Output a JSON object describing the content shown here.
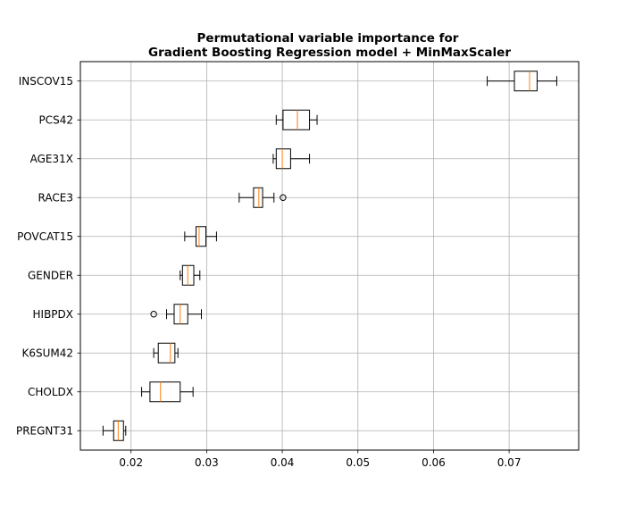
{
  "chart_data": {
    "type": "boxplot",
    "orientation": "horizontal",
    "title_lines": [
      "Permutational variable importance for",
      "Gradient Boosting Regression model + MinMaxScaler"
    ],
    "xlabel": "",
    "ylabel": "",
    "xlim": [
      0.0133,
      0.0792
    ],
    "x_ticks": [
      0.02,
      0.03,
      0.04,
      0.05,
      0.06,
      0.07
    ],
    "x_tick_labels": [
      "0.02",
      "0.03",
      "0.04",
      "0.05",
      "0.06",
      "0.07"
    ],
    "grid": true,
    "box_color": "#000000",
    "median_color": "#ff7f0e",
    "categories": [
      "INSCOV15",
      "PCS42",
      "AGE31X",
      "RACE3",
      "POVCAT15",
      "GENDER",
      "HIBPDX",
      "K6SUM42",
      "CHOLDX",
      "PREGNT31"
    ],
    "boxes": [
      {
        "label": "INSCOV15",
        "whisker_low": 0.0671,
        "q1": 0.0707,
        "median": 0.0727,
        "q3": 0.0737,
        "whisker_high": 0.0763,
        "outliers": []
      },
      {
        "label": "PCS42",
        "whisker_low": 0.0392,
        "q1": 0.0401,
        "median": 0.042,
        "q3": 0.0436,
        "whisker_high": 0.0446,
        "outliers": []
      },
      {
        "label": "AGE31X",
        "whisker_low": 0.0388,
        "q1": 0.0392,
        "median": 0.04,
        "q3": 0.0411,
        "whisker_high": 0.0436,
        "outliers": []
      },
      {
        "label": "RACE3",
        "whisker_low": 0.0343,
        "q1": 0.0362,
        "median": 0.0369,
        "q3": 0.0374,
        "whisker_high": 0.0389,
        "outliers": [
          0.0401
        ]
      },
      {
        "label": "POVCAT15",
        "whisker_low": 0.0271,
        "q1": 0.0286,
        "median": 0.029,
        "q3": 0.0299,
        "whisker_high": 0.0313,
        "outliers": []
      },
      {
        "label": "GENDER",
        "whisker_low": 0.0265,
        "q1": 0.0268,
        "median": 0.0275,
        "q3": 0.0283,
        "whisker_high": 0.0291,
        "outliers": []
      },
      {
        "label": "HIBPDX",
        "whisker_low": 0.0247,
        "q1": 0.0257,
        "median": 0.0265,
        "q3": 0.0275,
        "whisker_high": 0.0293,
        "outliers": [
          0.023
        ]
      },
      {
        "label": "K6SUM42",
        "whisker_low": 0.023,
        "q1": 0.0236,
        "median": 0.0252,
        "q3": 0.0258,
        "whisker_high": 0.0262,
        "outliers": []
      },
      {
        "label": "CHOLDX",
        "whisker_low": 0.0214,
        "q1": 0.0225,
        "median": 0.0239,
        "q3": 0.0265,
        "whisker_high": 0.0282,
        "outliers": []
      },
      {
        "label": "PREGNT31",
        "whisker_low": 0.0163,
        "q1": 0.0177,
        "median": 0.0183,
        "q3": 0.019,
        "whisker_high": 0.0193,
        "outliers": []
      }
    ]
  }
}
